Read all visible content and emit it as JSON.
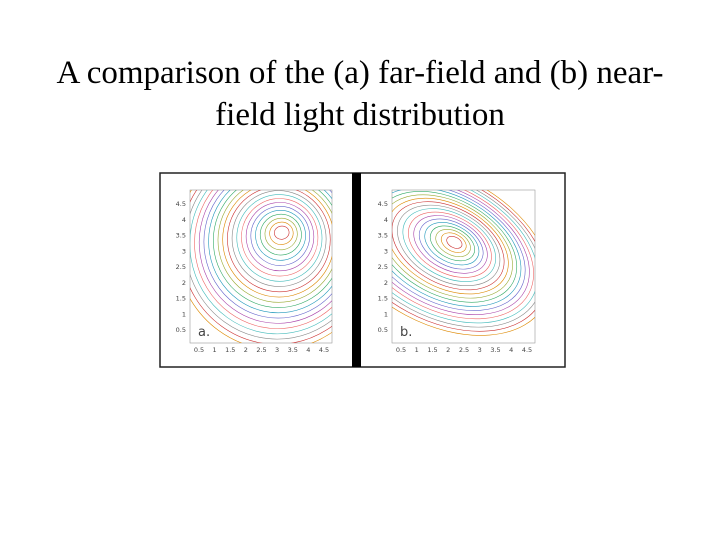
{
  "title": "A comparison of the (a) far-field and (b) near-field light distribution",
  "figure": {
    "panels": [
      {
        "label": "a.",
        "xticks": [
          "0.5",
          "1",
          "1.5",
          "2",
          "2.5",
          "3",
          "3.5",
          "4",
          "4.5"
        ],
        "yticks": [
          "4.5",
          "4",
          "3.5",
          "3",
          "2.5",
          "2",
          "1.5",
          "1",
          "0.5"
        ]
      },
      {
        "label": "b.",
        "xticks": [
          "0.5",
          "1",
          "1.5",
          "2",
          "2.5",
          "3",
          "3.5",
          "4",
          "4.5"
        ],
        "yticks": [
          "4.5",
          "4",
          "3.5",
          "3",
          "2.5",
          "2",
          "1.5",
          "1",
          "0.5"
        ]
      }
    ]
  }
}
